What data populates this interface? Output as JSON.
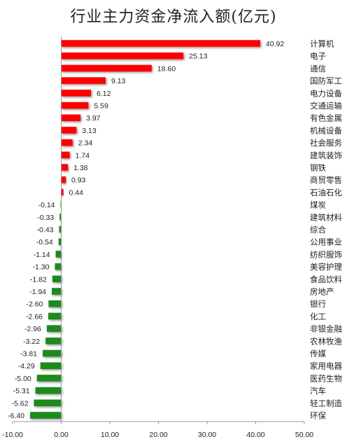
{
  "chart_data": {
    "type": "bar",
    "orientation": "horizontal",
    "title": "行业主力资金净流入额(亿元)",
    "xlim": [
      -10,
      50
    ],
    "xticks": [
      "-10.00",
      "0.00",
      "10.00",
      "20.00",
      "30.00",
      "40.00",
      "50.00"
    ],
    "grid": false,
    "legend": "none",
    "colors": {
      "positive": "#ff0000",
      "negative": "#1a8a1a"
    },
    "categories": [
      "计算机",
      "电子",
      "通信",
      "国防军工",
      "电力设备",
      "交通运输",
      "有色金属",
      "机械设备",
      "社会服务",
      "建筑装饰",
      "钢铁",
      "商贸零售",
      "石油石化",
      "煤炭",
      "建筑材料",
      "综合",
      "公用事业",
      "纺织服饰",
      "美容护理",
      "食品饮料",
      "房地产",
      "银行",
      "化工",
      "非银金融",
      "农林牧渔",
      "传媒",
      "家用电器",
      "医药生物",
      "汽车",
      "轻工制造",
      "环保"
    ],
    "values": [
      40.92,
      25.13,
      18.6,
      9.13,
      6.12,
      5.59,
      3.97,
      3.13,
      2.34,
      1.74,
      1.38,
      0.93,
      0.44,
      -0.14,
      -0.33,
      -0.43,
      -0.54,
      -1.14,
      -1.3,
      -1.82,
      -1.94,
      -2.6,
      -2.66,
      -2.96,
      -3.22,
      -3.81,
      -4.29,
      -5.0,
      -5.31,
      -5.62,
      -6.4
    ],
    "value_labels": [
      "40.92",
      "25.13",
      "18.60",
      "9.13",
      "6.12",
      "5.59",
      "3.97",
      "3.13",
      "2.34",
      "1.74",
      "1.38",
      "0.93",
      "0.44",
      "-0.14",
      "-0.33",
      "-0.43",
      "-0.54",
      "-1.14",
      "-1.30",
      "-1.82",
      "-1.94",
      "-2.60",
      "-2.66",
      "-2.96",
      "-3.22",
      "-3.81",
      "-4.29",
      "-5.00",
      "-5.31",
      "-5.62",
      "-6.40"
    ]
  }
}
